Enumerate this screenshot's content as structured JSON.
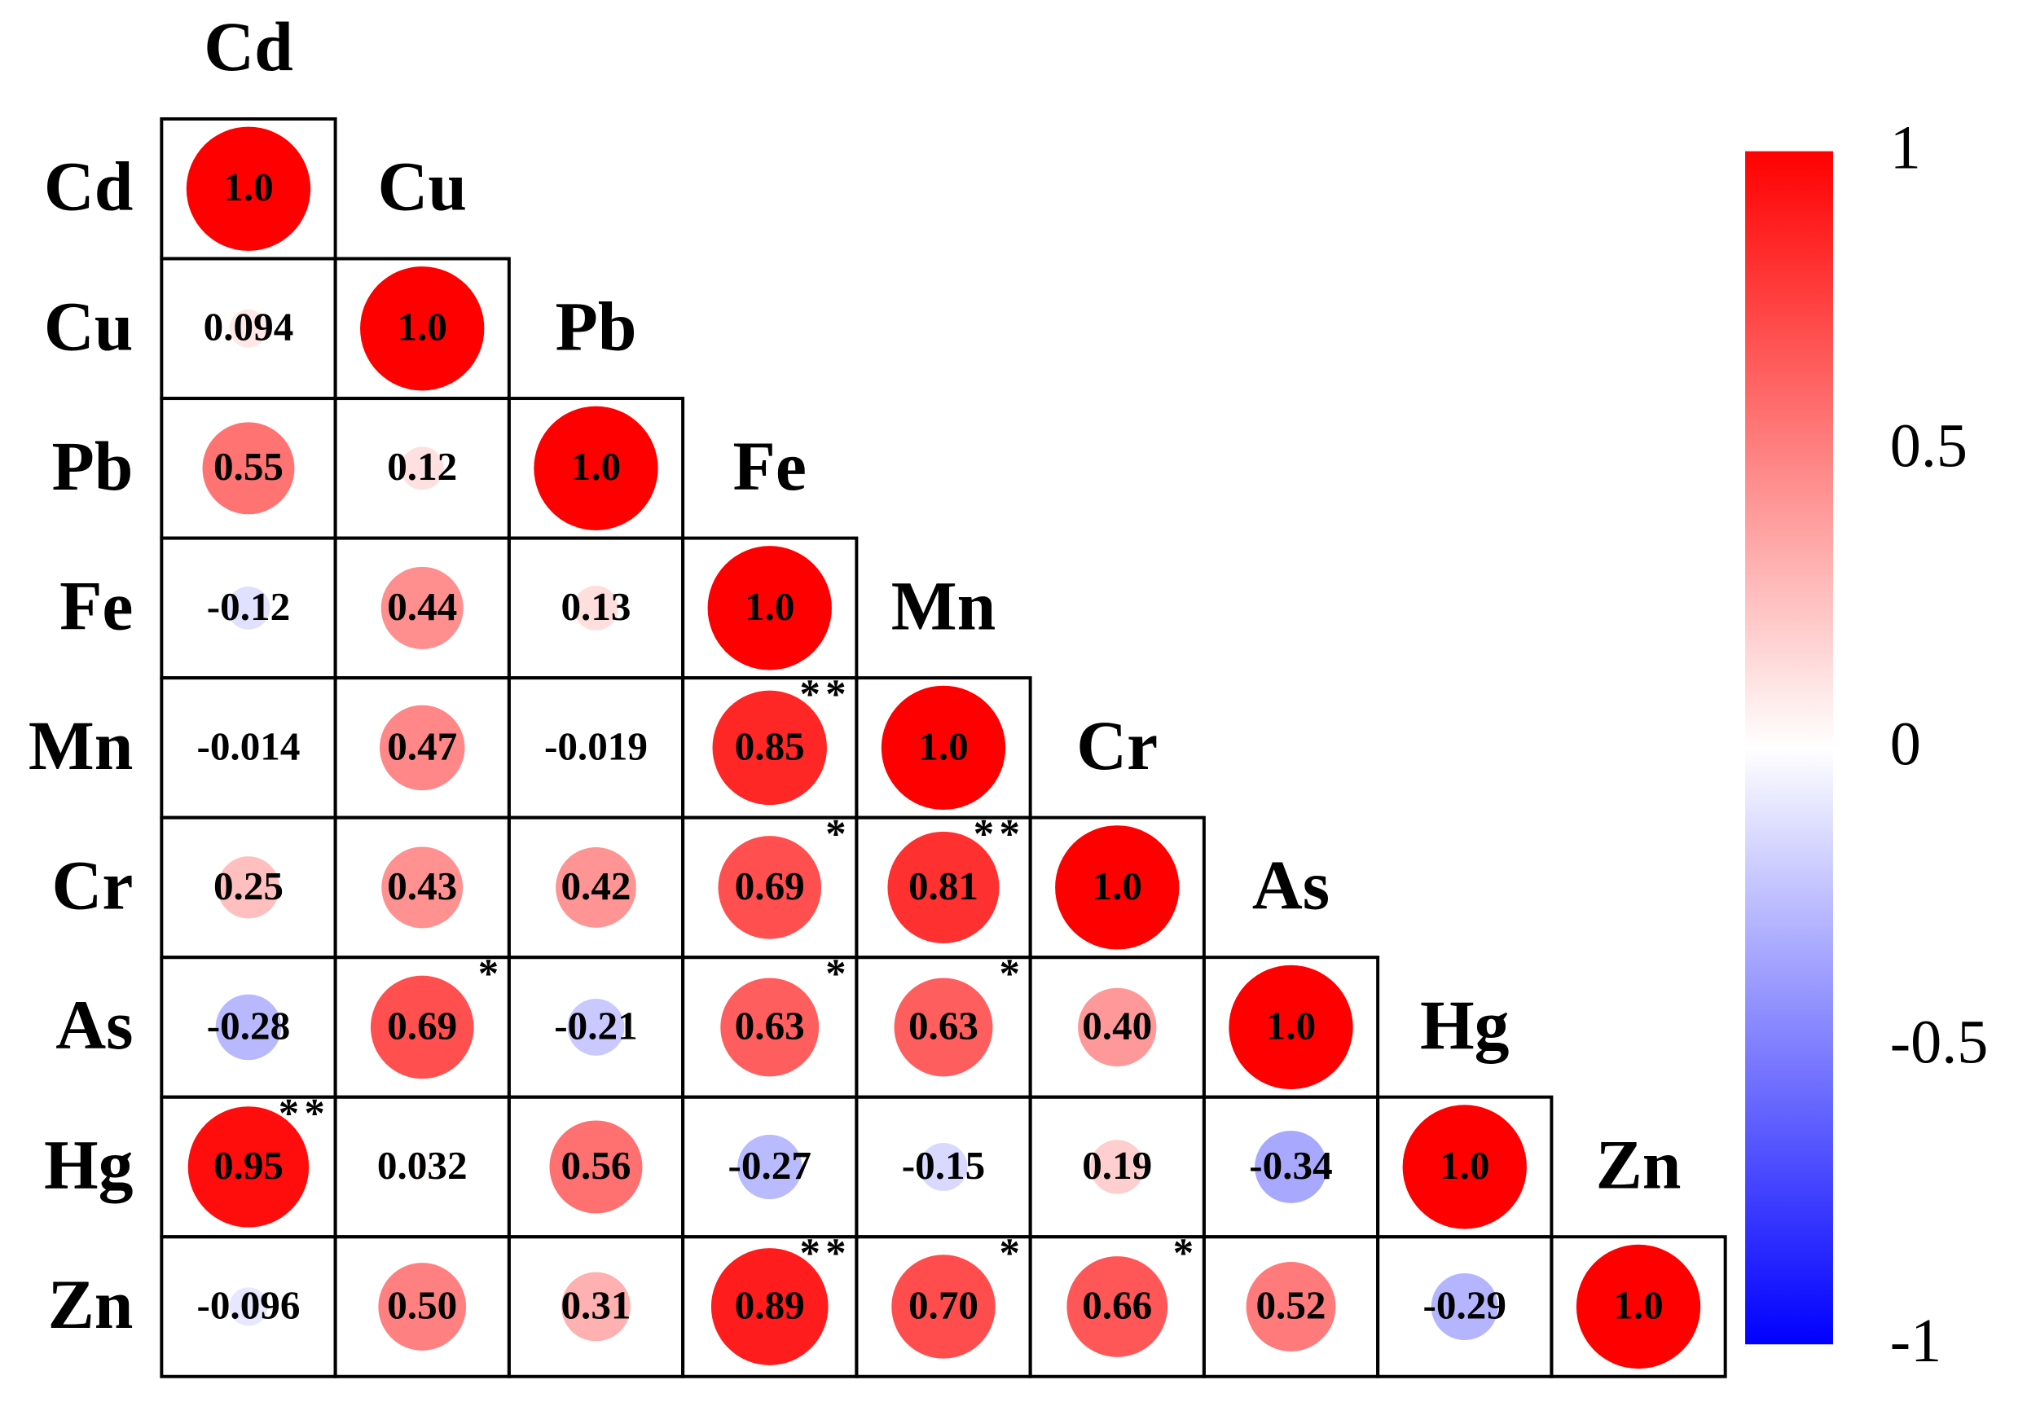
{
  "chart_data": {
    "type": "corrplot",
    "variables": [
      "Cd",
      "Cu",
      "Pb",
      "Fe",
      "Mn",
      "Cr",
      "As",
      "Hg",
      "Zn"
    ],
    "values": [
      [
        1
      ],
      [
        0.094,
        1
      ],
      [
        0.55,
        0.12,
        1
      ],
      [
        -0.12,
        0.44,
        0.13,
        1
      ],
      [
        -0.014,
        0.47,
        -0.019,
        0.85,
        1
      ],
      [
        0.25,
        0.43,
        0.42,
        0.69,
        0.81,
        1
      ],
      [
        -0.28,
        0.69,
        -0.21,
        0.63,
        0.63,
        0.4,
        1
      ],
      [
        0.95,
        0.032,
        0.56,
        -0.27,
        -0.15,
        0.19,
        -0.34,
        1
      ],
      [
        -0.096,
        0.5,
        0.31,
        0.89,
        0.7,
        0.66,
        0.52,
        -0.29,
        1
      ]
    ],
    "value_labels": [
      [
        "1.0"
      ],
      [
        "0.094",
        "1.0"
      ],
      [
        "0.55",
        "0.12",
        "1.0"
      ],
      [
        "-0.12",
        "0.44",
        "0.13",
        "1.0"
      ],
      [
        "-0.014",
        "0.47",
        "-0.019",
        "0.85",
        "1.0"
      ],
      [
        "0.25",
        "0.43",
        "0.42",
        "0.69",
        "0.81",
        "1.0"
      ],
      [
        "-0.28",
        "0.69",
        "-0.21",
        "0.63",
        "0.63",
        "0.40",
        "1.0"
      ],
      [
        "0.95",
        "0.032",
        "0.56",
        "-0.27",
        "-0.15",
        "0.19",
        "-0.34",
        "1.0"
      ],
      [
        "-0.096",
        "0.50",
        "0.31",
        "0.89",
        "0.70",
        "0.66",
        "0.52",
        "-0.29",
        "1.0"
      ]
    ],
    "significance": [
      [
        null
      ],
      [
        null,
        null
      ],
      [
        null,
        null,
        null
      ],
      [
        null,
        null,
        null,
        null
      ],
      [
        null,
        null,
        null,
        "**",
        null
      ],
      [
        null,
        null,
        null,
        "*",
        "**",
        null
      ],
      [
        null,
        "*",
        null,
        "*",
        "*",
        null,
        null
      ],
      [
        "**",
        null,
        null,
        null,
        null,
        null,
        null,
        null
      ],
      [
        null,
        null,
        null,
        "**",
        "*",
        "*",
        null,
        null,
        null
      ]
    ],
    "colormap": [
      "#0000ff",
      "#ffffff",
      "#ff0000"
    ],
    "clim": [
      -1,
      1
    ],
    "colorbar_ticks": [
      1,
      0.5,
      0,
      -0.5,
      -1
    ]
  }
}
